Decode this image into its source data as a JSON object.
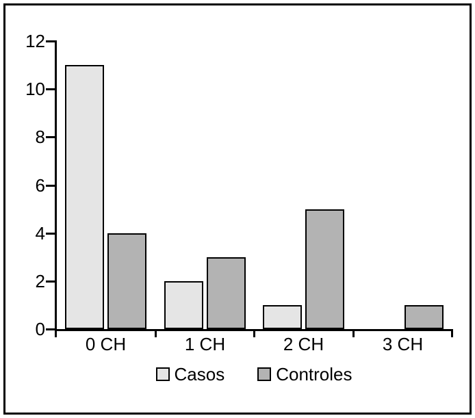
{
  "figure": {
    "background": "#ffffff",
    "frame_color": "#000000",
    "text_color": "#000000"
  },
  "chart_data": {
    "type": "bar",
    "title": "",
    "xlabel": "",
    "ylabel": "",
    "categories": [
      "0 CH",
      "1 CH",
      "2 CH",
      "3 CH"
    ],
    "series": [
      {
        "name": "Casos",
        "color": "#e5e5e5",
        "values": [
          11,
          2,
          1,
          0
        ]
      },
      {
        "name": "Controles",
        "color": "#b3b3b3",
        "values": [
          4,
          3,
          5,
          1
        ]
      }
    ],
    "ylim": [
      0,
      12
    ],
    "yticks": [
      0,
      2,
      4,
      6,
      8,
      10,
      12
    ],
    "grid": false,
    "legend_position": "bottom-center",
    "bar_outline_color": "#000000",
    "axis_color": "#000000"
  }
}
